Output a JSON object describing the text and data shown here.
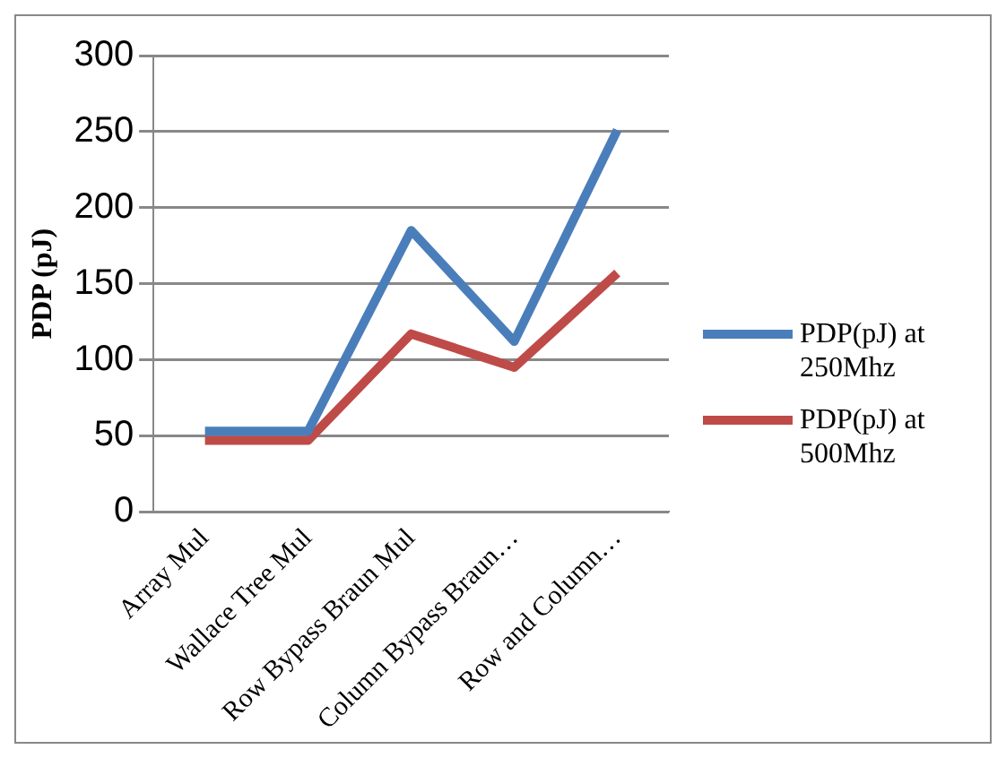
{
  "chart_data": {
    "type": "line",
    "ylabel": "PDP (pJ)",
    "categories": [
      "Array Mul",
      "Wallace Tree Mul",
      "Row Bypass Braun Mul",
      "Column Bypass Braun…",
      "Row and Column…"
    ],
    "series": [
      {
        "name": "PDP(pJ) at 250Mhz",
        "color": "#4a7ebb",
        "values": [
          53,
          53,
          185,
          112,
          251
        ]
      },
      {
        "name": "PDP(pJ) at 500Mhz",
        "color": "#be4b48",
        "values": [
          47,
          47,
          117,
          95,
          157
        ]
      }
    ],
    "ylim": [
      0,
      300
    ],
    "yticks": [
      0,
      50,
      100,
      150,
      200,
      250,
      300
    ],
    "grid": "y",
    "legend": "right",
    "marker": "none"
  }
}
